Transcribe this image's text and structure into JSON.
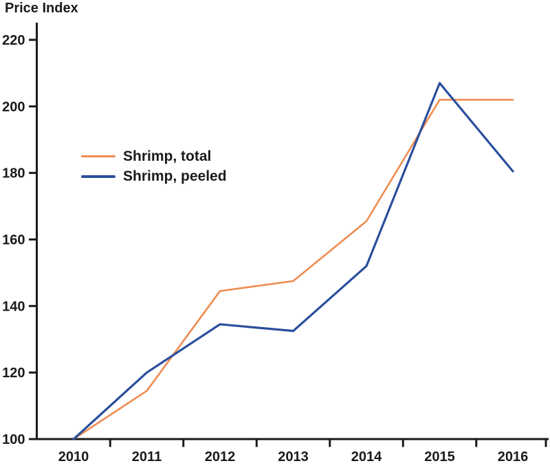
{
  "title": "Price Index",
  "colors": {
    "axis": "#1a1a1a",
    "text": "#1a1a1a",
    "shrimp_total": "#EF8B50",
    "shrimp_peeled": "#2A4E9D"
  },
  "legend": {
    "items": [
      {
        "label": "Shrimp, total",
        "color": "#EF8B50"
      },
      {
        "label": "Shrimp, peeled",
        "color": "#2A4E9D"
      }
    ]
  },
  "chart_data": {
    "type": "line",
    "title": "Price Index",
    "xlabel": "",
    "ylabel": "Price Index",
    "x": [
      2010,
      2011,
      2012,
      2013,
      2014,
      2015,
      2016
    ],
    "series": [
      {
        "name": "Shrimp, total",
        "color": "#EF8B50",
        "values": [
          100,
          114.5,
          144.5,
          147.5,
          165.5,
          202,
          202
        ]
      },
      {
        "name": "Shrimp, peeled",
        "color": "#2A4E9D",
        "values": [
          100,
          120,
          134.5,
          132.5,
          152,
          207,
          180.5
        ]
      }
    ],
    "ylim": [
      100,
      220
    ],
    "yticks": [
      100,
      120,
      140,
      160,
      180,
      200,
      220
    ],
    "grid": false,
    "legend_position": "upper-left-inside"
  }
}
